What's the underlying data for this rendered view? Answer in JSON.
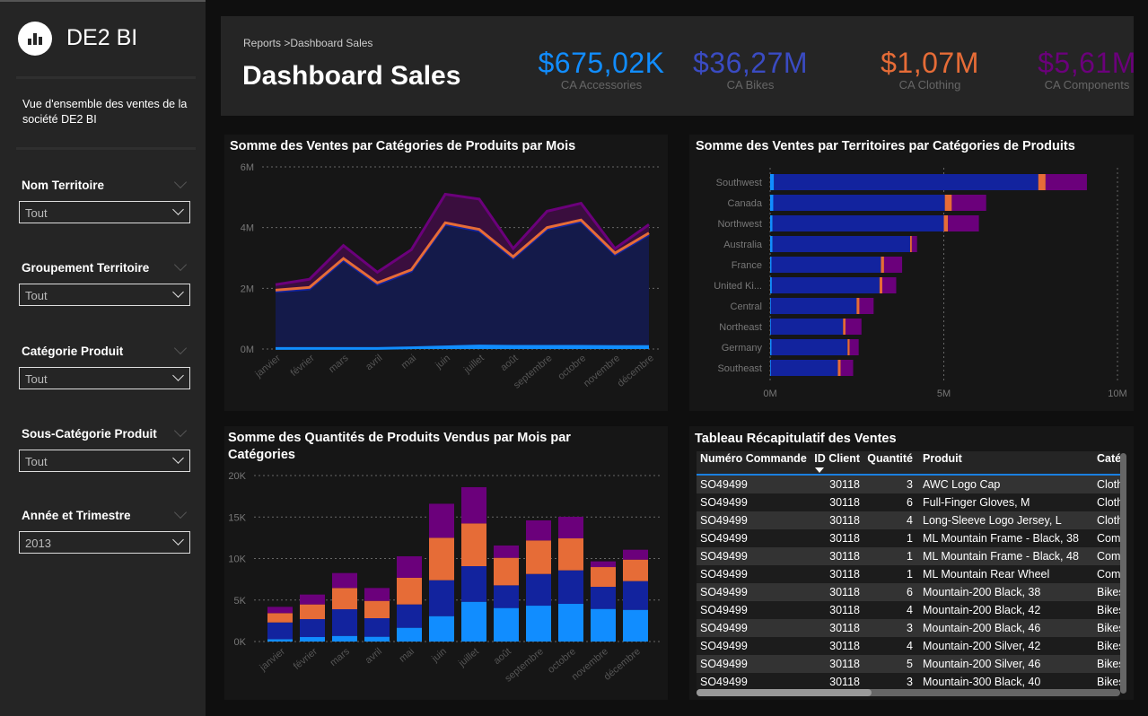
{
  "sidebar": {
    "brand": "DE2 BI",
    "logo_icon": "bar-chart-icon",
    "description": "Vue d'ensemble des ventes de la société DE2 BI",
    "slicers": [
      {
        "title": "Nom Territoire",
        "value": "Tout"
      },
      {
        "title": "Groupement Territoire",
        "value": "Tout"
      },
      {
        "title": "Catégorie Produit",
        "value": "Tout"
      },
      {
        "title": "Sous-Catégorie Produit",
        "value": "Tout"
      },
      {
        "title": "Année et Trimestre",
        "value": "2013"
      }
    ]
  },
  "header": {
    "breadcrumb": "Reports >Dashboard Sales",
    "title": "Dashboard Sales",
    "kpis": [
      {
        "value": "$675,02K",
        "label": "CA Accessories",
        "color": "#118DFF"
      },
      {
        "value": "$36,27M",
        "label": "CA Bikes",
        "color": "#3A4BC2"
      },
      {
        "value": "$1,07M",
        "label": "CA Clothing",
        "color": "#E66C37"
      },
      {
        "value": "$5,61M",
        "label": "CA Components",
        "color": "#6B007B"
      }
    ]
  },
  "colors": {
    "Accessories": "#118DFF",
    "Bikes": "#12239E",
    "Clothing": "#E66C37",
    "Components": "#6B007B"
  },
  "chart_data": [
    {
      "type": "area",
      "title": "Somme des Ventes par Catégories de Produits par Mois",
      "stacked": true,
      "grid": true,
      "categories": [
        "janvier",
        "février",
        "mars",
        "avril",
        "mai",
        "juin",
        "juillet",
        "août",
        "septembre",
        "octobre",
        "novembre",
        "décembre"
      ],
      "yticks": [
        "0M",
        "2M",
        "4M",
        "6M"
      ],
      "ylim": [
        0,
        6000000
      ],
      "series": [
        {
          "key": "Accessories",
          "values": [
            20000,
            20000,
            20000,
            20000,
            40000,
            70000,
            100000,
            90000,
            90000,
            90000,
            80000,
            80000
          ]
        },
        {
          "key": "Bikes",
          "values": [
            1870000,
            1960000,
            2910000,
            2110000,
            2520000,
            4040000,
            3790000,
            2900000,
            3860000,
            4110000,
            3030000,
            3690000
          ]
        },
        {
          "key": "Clothing",
          "values": [
            50000,
            50000,
            50000,
            50000,
            50000,
            50000,
            50000,
            50000,
            50000,
            50000,
            50000,
            50000
          ]
        },
        {
          "key": "Components",
          "values": [
            180000,
            270000,
            430000,
            350000,
            660000,
            940000,
            1000000,
            270000,
            540000,
            550000,
            150000,
            280000
          ]
        }
      ]
    },
    {
      "type": "bar",
      "orientation": "horizontal",
      "stacked": true,
      "title": "Somme des Ventes par Territoires par Catégories de Produits",
      "grid": true,
      "categories": [
        "Southwest",
        "Canada",
        "Northwest",
        "Australia",
        "France",
        "United Ki...",
        "Central",
        "Northeast",
        "Germany",
        "Southeast"
      ],
      "xticks": [
        "0M",
        "5M",
        "10M"
      ],
      "xlim": [
        0,
        10000000
      ],
      "series": [
        {
          "key": "Accessories",
          "values": [
            110000,
            90000,
            70000,
            70000,
            40000,
            50000,
            20000,
            20000,
            40000,
            20000
          ]
        },
        {
          "key": "Bikes",
          "values": [
            7610000,
            4940000,
            4930000,
            3960000,
            3150000,
            3100000,
            2470000,
            2080000,
            2190000,
            1930000
          ]
        },
        {
          "key": "Clothing",
          "values": [
            210000,
            200000,
            120000,
            50000,
            90000,
            80000,
            80000,
            70000,
            60000,
            80000
          ]
        },
        {
          "key": "Components",
          "values": [
            1190000,
            990000,
            890000,
            150000,
            520000,
            400000,
            410000,
            460000,
            260000,
            360000
          ]
        }
      ]
    },
    {
      "type": "bar",
      "orientation": "vertical",
      "stacked": true,
      "title": "Somme des Quantités de Produits Vendus par Mois par Catégories",
      "grid": true,
      "categories": [
        "janvier",
        "février",
        "mars",
        "avril",
        "mai",
        "juin",
        "juillet",
        "août",
        "septembre",
        "octobre",
        "novembre",
        "décembre"
      ],
      "yticks": [
        "0K",
        "5K",
        "10K",
        "15K",
        "20K"
      ],
      "ylim": [
        0,
        20000
      ],
      "series": [
        {
          "key": "Accessories",
          "values": [
            290,
            540,
            680,
            580,
            1660,
            3060,
            4790,
            4040,
            4320,
            4540,
            3930,
            3820
          ]
        },
        {
          "key": "Bikes",
          "values": [
            2010,
            2160,
            3210,
            2230,
            2810,
            4330,
            4290,
            2730,
            3820,
            4040,
            2660,
            3460
          ]
        },
        {
          "key": "Clothing",
          "values": [
            1120,
            1770,
            2560,
            2090,
            3210,
            5110,
            5150,
            3320,
            4040,
            3850,
            2380,
            2590
          ]
        },
        {
          "key": "Components",
          "values": [
            760,
            1190,
            1800,
            1550,
            2590,
            4100,
            4370,
            1480,
            2420,
            2600,
            690,
            1190
          ]
        }
      ]
    }
  ],
  "table": {
    "title": "Tableau Récapitulatif des Ventes",
    "sorted_column": "ID Client",
    "columns": [
      "Numéro Commande",
      "ID Client",
      "Quantité",
      "Produit",
      "Catégorie"
    ],
    "rows": [
      [
        "SO49499",
        "30118",
        "3",
        "AWC Logo Cap",
        "Clothing"
      ],
      [
        "SO49499",
        "30118",
        "6",
        "Full-Finger Gloves, M",
        "Clothing"
      ],
      [
        "SO49499",
        "30118",
        "4",
        "Long-Sleeve Logo Jersey, L",
        "Clothing"
      ],
      [
        "SO49499",
        "30118",
        "1",
        "ML Mountain Frame - Black, 38",
        "Components"
      ],
      [
        "SO49499",
        "30118",
        "1",
        "ML Mountain Frame - Black, 48",
        "Components"
      ],
      [
        "SO49499",
        "30118",
        "1",
        "ML Mountain Rear Wheel",
        "Components"
      ],
      [
        "SO49499",
        "30118",
        "6",
        "Mountain-200 Black, 38",
        "Bikes"
      ],
      [
        "SO49499",
        "30118",
        "4",
        "Mountain-200 Black, 42",
        "Bikes"
      ],
      [
        "SO49499",
        "30118",
        "3",
        "Mountain-200 Black, 46",
        "Bikes"
      ],
      [
        "SO49499",
        "30118",
        "4",
        "Mountain-200 Silver, 42",
        "Bikes"
      ],
      [
        "SO49499",
        "30118",
        "5",
        "Mountain-200 Silver, 46",
        "Bikes"
      ],
      [
        "SO49499",
        "30118",
        "3",
        "Mountain-300 Black, 40",
        "Bikes"
      ]
    ]
  }
}
